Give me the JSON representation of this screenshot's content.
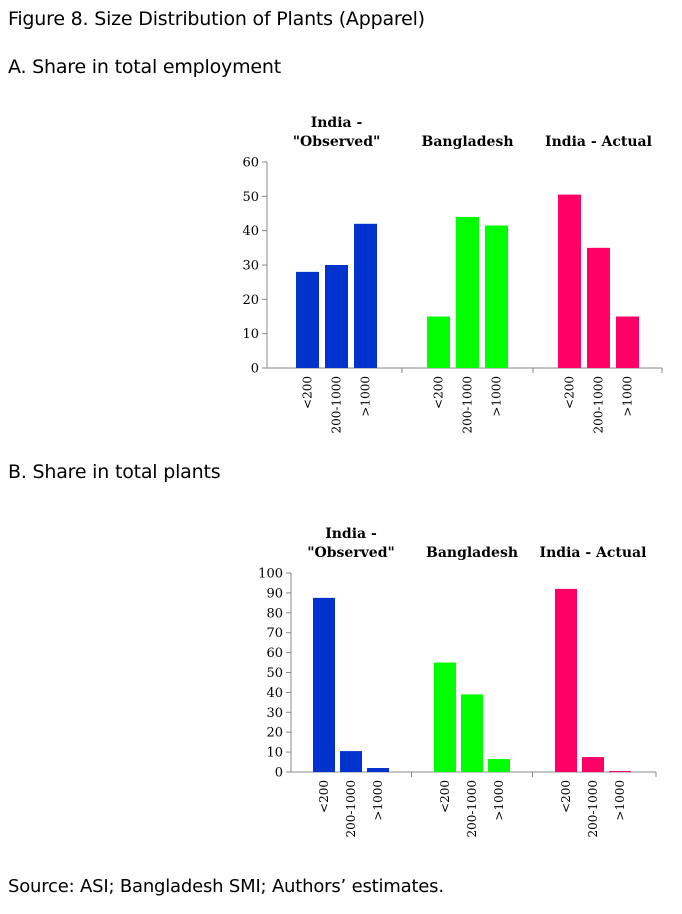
{
  "figure_title": "Figure 8. Size Distribution of Plants (Apparel)",
  "source": "Source: ASI; Bangladesh SMI; Authors’ estimates.",
  "colors": {
    "india_observed": "#0033cc",
    "bangladesh": "#00ff00",
    "india_actual": "#ff0066"
  },
  "chart_data": [
    {
      "type": "bar",
      "title": "A. Share in total employment",
      "groups": [
        {
          "name_lines": [
            "India -",
            "\"Observed\""
          ],
          "categories": [
            "<200",
            "200-1000",
            ">1000"
          ],
          "values": [
            28,
            30,
            42
          ],
          "color_key": "india_observed"
        },
        {
          "name_lines": [
            "Bangladesh"
          ],
          "categories": [
            "<200",
            "200-1000",
            ">1000"
          ],
          "values": [
            15,
            44,
            41.5
          ],
          "color_key": "bangladesh"
        },
        {
          "name_lines": [
            "India - Actual"
          ],
          "categories": [
            "<200",
            "200-1000",
            ">1000"
          ],
          "values": [
            50.5,
            35,
            15
          ],
          "color_key": "india_actual"
        }
      ],
      "ylim": [
        0,
        60
      ],
      "yticks": [
        "0",
        "10",
        "20",
        "30",
        "40",
        "50",
        "60"
      ],
      "grid": false
    },
    {
      "type": "bar",
      "title": "B. Share in total plants",
      "groups": [
        {
          "name_lines": [
            "India -",
            "\"Observed\""
          ],
          "categories": [
            "<200",
            "200-1000",
            ">1000"
          ],
          "values": [
            87.5,
            10.5,
            2
          ],
          "color_key": "india_observed"
        },
        {
          "name_lines": [
            "Bangladesh"
          ],
          "categories": [
            "<200",
            "200-1000",
            ">1000"
          ],
          "values": [
            55,
            39,
            6.5
          ],
          "color_key": "bangladesh"
        },
        {
          "name_lines": [
            "India - Actual"
          ],
          "categories": [
            "<200",
            "200-1000",
            ">1000"
          ],
          "values": [
            92,
            7.5,
            0.5
          ],
          "color_key": "india_actual"
        }
      ],
      "ylim": [
        0,
        100
      ],
      "yticks": [
        "0",
        "10",
        "20",
        "30",
        "40",
        "50",
        "60",
        "70",
        "80",
        "90",
        "100"
      ],
      "grid": false
    }
  ]
}
